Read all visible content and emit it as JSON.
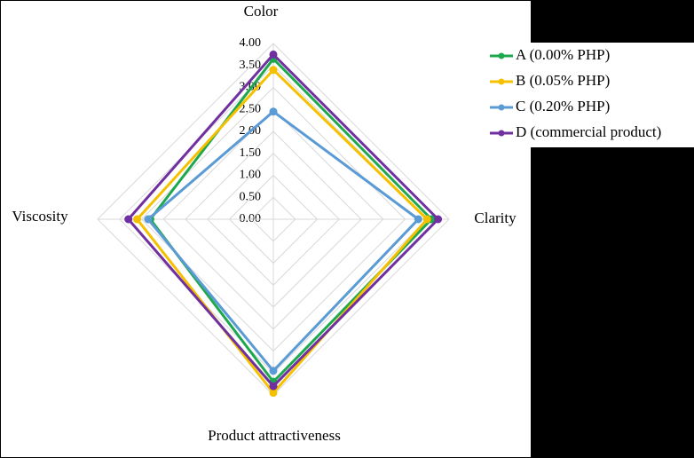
{
  "chart_data": {
    "type": "radar",
    "categories": [
      "Color",
      "Clarity",
      "Product attractiveness",
      "Viscosity"
    ],
    "series": [
      {
        "name": "A (0.00% PHP)",
        "color": "#1ea84e",
        "values": [
          3.65,
          3.6,
          3.7,
          2.8
        ]
      },
      {
        "name": "B (0.05% PHP)",
        "color": "#f5c000",
        "values": [
          3.4,
          3.5,
          3.95,
          3.1
        ]
      },
      {
        "name": "C (0.20% PHP)",
        "color": "#5b9bd5",
        "values": [
          2.45,
          3.3,
          3.45,
          2.85
        ]
      },
      {
        "name": "D (commercial product)",
        "color": "#7030a0",
        "values": [
          3.75,
          3.75,
          3.8,
          3.3
        ]
      }
    ],
    "rlim": [
      0,
      4
    ],
    "rticks": [
      {
        "value": 0,
        "label": "0.00"
      },
      {
        "value": 0.5,
        "label": "0.50"
      },
      {
        "value": 1,
        "label": "1.00"
      },
      {
        "value": 1.5,
        "label": "1.50"
      },
      {
        "value": 2,
        "label": "2.00"
      },
      {
        "value": 2.5,
        "label": "2.50"
      },
      {
        "value": 3,
        "label": "3.00"
      },
      {
        "value": 3.5,
        "label": "3.50"
      },
      {
        "value": 4,
        "label": "4.00"
      }
    ],
    "grid": true
  }
}
